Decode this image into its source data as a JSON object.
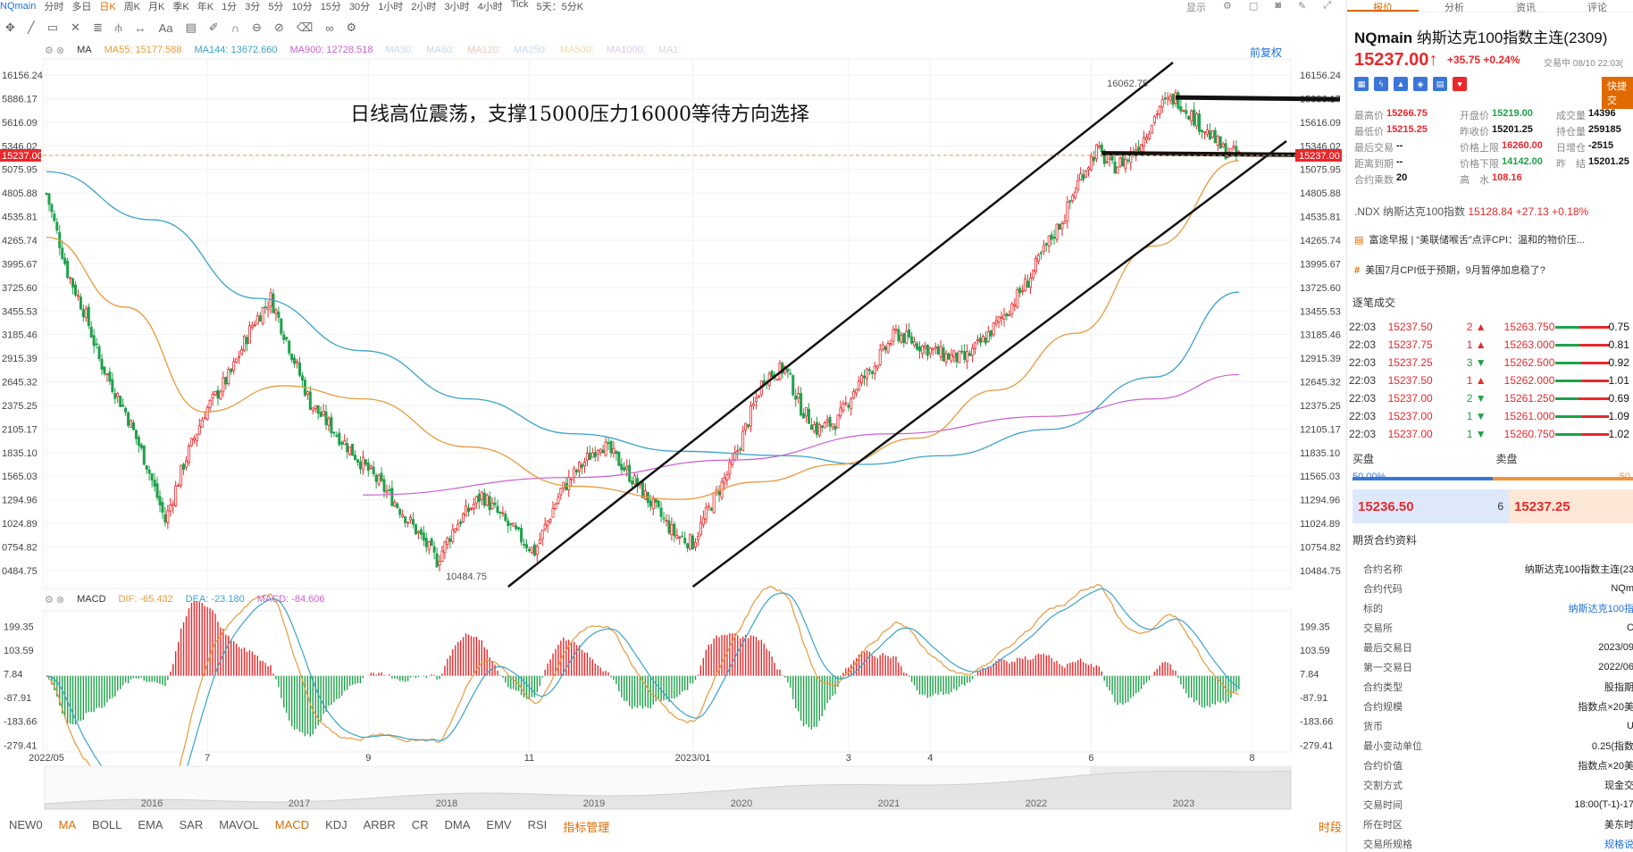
{
  "topbar": {
    "symbol": "NQmain",
    "periods": [
      "分时",
      "多日",
      "日K",
      "周K",
      "月K",
      "季K",
      "年K",
      "1分",
      "3分",
      "5分",
      "10分",
      "15分",
      "30分",
      "1小时",
      "2小时",
      "3小时",
      "4小时",
      "Tick",
      "5天：5分K"
    ],
    "active_period": "日K",
    "right_label": "显示"
  },
  "ma_legend": {
    "label": "MA",
    "items": [
      {
        "text": "MA55: 15177.588",
        "color": "#e89a3c"
      },
      {
        "text": "MA144: 13672.660",
        "color": "#3aa3c9"
      },
      {
        "text": "MA900: 12728.518",
        "color": "#c95fd0"
      },
      {
        "text": "MA30:",
        "color": "#c8d8e8"
      },
      {
        "text": "MA60:",
        "color": "#c8d8e8"
      },
      {
        "text": "MA120:",
        "color": "#f0c8c0"
      },
      {
        "text": "MA250:",
        "color": "#c8d8f0"
      },
      {
        "text": "MA500:",
        "color": "#f0d8b0"
      },
      {
        "text": "MA1000:",
        "color": "#d8c8f0"
      },
      {
        "text": "MA1:",
        "color": "#d8d8d8"
      }
    ]
  },
  "fq_label": "前复权",
  "annotation": "日线高位震荡，支撑15000压力16000等待方向选择",
  "macd_legend": {
    "label": "MACD",
    "items": [
      {
        "text": "DIF: -65.432",
        "color": "#e89a3c"
      },
      {
        "text": "DEA: -23.180",
        "color": "#3aa3c9"
      },
      {
        "text": "MACD: -84.606",
        "color": "#c95fd0"
      }
    ]
  },
  "chart_data": {
    "type": "candlestick",
    "price_ticks": [
      16156.24,
      15886.17,
      15616.09,
      15346.02,
      15075.95,
      14805.88,
      14535.81,
      14265.74,
      13995.67,
      13725.6,
      13455.53,
      13185.46,
      12915.39,
      12645.32,
      12375.25,
      12105.17,
      11835.1,
      11565.03,
      11294.96,
      11024.89,
      10754.82,
      10484.75
    ],
    "price_tick_labels": [
      "16156.24",
      "5886.17",
      "5616.09",
      "5346.02",
      "5075.95",
      "4805.88",
      "4535.81",
      "4265.74",
      "3995.67",
      "3725.60",
      "3455.53",
      "3185.46",
      "2915.39",
      "2645.32",
      "2375.25",
      "2105.17",
      "1835.10",
      "1565.03",
      "1294.96",
      "1024.89",
      "0754.82",
      "0484.75"
    ],
    "price_tick_labels_right": [
      "16156.24",
      "15886.17",
      "15616.09",
      "15346.02",
      "15075.95",
      "14805.88",
      "14535.81",
      "14265.74",
      "13995.67",
      "13725.60",
      "13455.53",
      "13185.46",
      "12915.39",
      "12645.32",
      "12375.25",
      "12105.17",
      "11835.10",
      "11565.03",
      "11294.96",
      "11024.89",
      "10754.82",
      "10484.75"
    ],
    "ylim": [
      10320,
      16300
    ],
    "current_price": 15237.0,
    "current_price_label": "15237.00",
    "high_label": "16062.75",
    "low_label": "10484.75",
    "x_labels": [
      "2022/05",
      "7",
      "9",
      "11",
      "2023/01",
      "3",
      "4",
      "6",
      "8"
    ],
    "x_label_positions_days": [
      0,
      61,
      122,
      183,
      245,
      304,
      335,
      396,
      457
    ],
    "x_days_total": 470,
    "waypoints": [
      [
        0,
        14800
      ],
      [
        8,
        13900
      ],
      [
        15,
        13400
      ],
      [
        20,
        12900
      ],
      [
        30,
        12300
      ],
      [
        38,
        11700
      ],
      [
        45,
        11050
      ],
      [
        52,
        11700
      ],
      [
        60,
        12300
      ],
      [
        70,
        12750
      ],
      [
        78,
        13300
      ],
      [
        85,
        13600
      ],
      [
        92,
        13050
      ],
      [
        100,
        12400
      ],
      [
        110,
        12050
      ],
      [
        120,
        11700
      ],
      [
        130,
        11350
      ],
      [
        140,
        10950
      ],
      [
        148,
        10600
      ],
      [
        155,
        11000
      ],
      [
        165,
        11350
      ],
      [
        175,
        11000
      ],
      [
        185,
        10700
      ],
      [
        195,
        11400
      ],
      [
        210,
        11950
      ],
      [
        218,
        11700
      ],
      [
        228,
        11300
      ],
      [
        238,
        10900
      ],
      [
        245,
        10800
      ],
      [
        252,
        11250
      ],
      [
        260,
        11700
      ],
      [
        266,
        12200
      ],
      [
        272,
        12700
      ],
      [
        280,
        12800
      ],
      [
        286,
        12350
      ],
      [
        292,
        12100
      ],
      [
        300,
        12200
      ],
      [
        306,
        12550
      ],
      [
        314,
        12850
      ],
      [
        322,
        13200
      ],
      [
        332,
        13050
      ],
      [
        340,
        12950
      ],
      [
        348,
        12900
      ],
      [
        356,
        13150
      ],
      [
        364,
        13450
      ],
      [
        372,
        13800
      ],
      [
        380,
        14250
      ],
      [
        386,
        14550
      ],
      [
        392,
        15000
      ],
      [
        398,
        15300
      ],
      [
        404,
        15100
      ],
      [
        410,
        15200
      ],
      [
        416,
        15450
      ],
      [
        422,
        15800
      ],
      [
        428,
        15900
      ],
      [
        434,
        15700
      ],
      [
        440,
        15500
      ],
      [
        446,
        15300
      ],
      [
        452,
        15237
      ]
    ],
    "ma55_anchor": [
      [
        0,
        14300
      ],
      [
        30,
        13500
      ],
      [
        60,
        12300
      ],
      [
        90,
        12600
      ],
      [
        120,
        12450
      ],
      [
        160,
        11900
      ],
      [
        200,
        11450
      ],
      [
        240,
        11300
      ],
      [
        270,
        11500
      ],
      [
        300,
        11700
      ],
      [
        330,
        12000
      ],
      [
        360,
        12550
      ],
      [
        390,
        13200
      ],
      [
        420,
        14200
      ],
      [
        452,
        15177
      ]
    ],
    "ma144_anchor": [
      [
        0,
        15050
      ],
      [
        40,
        14500
      ],
      [
        80,
        13600
      ],
      [
        120,
        13000
      ],
      [
        160,
        12450
      ],
      [
        200,
        12050
      ],
      [
        240,
        11850
      ],
      [
        280,
        11800
      ],
      [
        310,
        11700
      ],
      [
        340,
        11800
      ],
      [
        380,
        12100
      ],
      [
        420,
        12700
      ],
      [
        452,
        13672
      ]
    ],
    "ma900_anchor": [
      [
        120,
        11350
      ],
      [
        200,
        11550
      ],
      [
        260,
        11750
      ],
      [
        320,
        12050
      ],
      [
        380,
        12250
      ],
      [
        420,
        12450
      ],
      [
        452,
        12728
      ]
    ],
    "channel_lines": [
      {
        "x1_day": 175,
        "y1": 10300,
        "x2_day": 427,
        "y2": 16300
      },
      {
        "x1_day": 245,
        "y1": 10300,
        "x2_day": 470,
        "y2": 15400
      }
    ],
    "resistance_line": {
      "x1_day": 428,
      "x2_day": 470,
      "y": 15900
    },
    "support_line": {
      "x1_day": 400,
      "x2_day": 470,
      "y": 15220
    },
    "macd_ticks": [
      199.35,
      103.59,
      7.84,
      -87.91,
      -183.66,
      -279.41
    ],
    "macd_tick_labels": [
      "199.35",
      "103.59",
      "7.84",
      "-87.91",
      "-183.66",
      "-279.41"
    ],
    "macd_ylim": [
      -300,
      240
    ],
    "overview_years": [
      "2016",
      "2017",
      "2018",
      "2019",
      "2020",
      "2021",
      "2022",
      "2023"
    ]
  },
  "bottom_tabs": [
    "NEW0",
    "MA",
    "BOLL",
    "EMA",
    "SAR",
    "MAVOL",
    "MACD",
    "KDJ",
    "ARBR",
    "CR",
    "DMA",
    "EMV",
    "RSI"
  ],
  "bottom_active": [
    "MA",
    "MACD"
  ],
  "bottom_manage": "指标管理",
  "bottom_period": "时段",
  "panel": {
    "tabs": [
      "报价",
      "分析",
      "资讯",
      "评论"
    ],
    "active_tab": "报价",
    "symbol": "NQmain",
    "name": "纳斯达克100指数主连(2309)",
    "price": "15237.00",
    "change": "+35.75 +0.24%",
    "status": "交易中 08/10 22:03(",
    "quick_button": "快捷交",
    "stats": [
      [
        {
          "l": "最高价",
          "v": "15266.75",
          "c": "up"
        },
        {
          "l": "开盘价",
          "v": "15219.00",
          "c": "dn"
        },
        {
          "l": "成交量",
          "v": "14396",
          "c": "nv"
        }
      ],
      [
        {
          "l": "最低价",
          "v": "15215.25",
          "c": "up"
        },
        {
          "l": "昨收价",
          "v": "15201.25",
          "c": "nv"
        },
        {
          "l": "持仓量",
          "v": "259185",
          "c": "nv"
        }
      ],
      [
        {
          "l": "最后交易",
          "v": "--",
          "c": "nv"
        },
        {
          "l": "价格上限",
          "v": "16260.00",
          "c": "up"
        },
        {
          "l": "日增仓",
          "v": "-2515",
          "c": "nv"
        }
      ],
      [
        {
          "l": "距离到期",
          "v": "--",
          "c": "nv"
        },
        {
          "l": "价格下限",
          "v": "14142.00",
          "c": "dn"
        },
        {
          "l": "昨　结",
          "v": "15201.25",
          "c": "nv"
        }
      ],
      [
        {
          "l": "合约乘数",
          "v": "20",
          "c": "nv"
        },
        {
          "l": "高　水",
          "v": "108.16",
          "c": "up"
        },
        {
          "l": "",
          "v": "",
          "c": "nv"
        }
      ]
    ],
    "ndx_name": ".NDX 纳斯达克100指数",
    "ndx_value": "15128.84",
    "ndx_change": "+27.13",
    "ndx_pct": "+0.18%",
    "news1": "富途早报 | “美联储喉舌”点评CPI：温和的物价压...",
    "news2": "美国7月CPI低于预期，9月暂停加息稳了?",
    "trades_title": "逐笔成交",
    "trades": [
      {
        "t": "22:03",
        "p": "15237.50",
        "v": "2",
        "dir": "up",
        "lp": "15263.750",
        "amt": "0.75"
      },
      {
        "t": "22:03",
        "p": "15237.75",
        "v": "1",
        "dir": "up",
        "lp": "15263.000",
        "amt": "0.81"
      },
      {
        "t": "22:03",
        "p": "15237.25",
        "v": "3",
        "dir": "down",
        "lp": "15262.500",
        "amt": "0.92"
      },
      {
        "t": "22:03",
        "p": "15237.50",
        "v": "1",
        "dir": "up",
        "lp": "15262.000",
        "amt": "1.01"
      },
      {
        "t": "22:03",
        "p": "15237.00",
        "v": "2",
        "dir": "down",
        "lp": "15261.250",
        "amt": "0.69"
      },
      {
        "t": "22:03",
        "p": "15237.00",
        "v": "1",
        "dir": "down",
        "lp": "15261.000",
        "amt": "1.09"
      },
      {
        "t": "22:03",
        "p": "15237.00",
        "v": "1",
        "dir": "down",
        "lp": "15260.750",
        "amt": "1.02"
      }
    ],
    "buy_label": "买盘",
    "sell_label": "卖盘",
    "buy_pct": "50.00%",
    "sell_pct": "50.",
    "bid": "15236.50",
    "bid_qty": "6",
    "ask": "15237.25",
    "spec_title": "期货合约资料",
    "spec": [
      {
        "l": "合约名称",
        "v": "纳斯达克100指数主连(23"
      },
      {
        "l": "合约代码",
        "v": "NQm"
      },
      {
        "l": "标的",
        "v": "纳斯达克100指",
        "link": true
      },
      {
        "l": "交易所",
        "v": "C"
      },
      {
        "l": "最后交易日",
        "v": "2023/09"
      },
      {
        "l": "第一交易日",
        "v": "2022/06"
      },
      {
        "l": "合约类型",
        "v": "股指期"
      },
      {
        "l": "合约规模",
        "v": "指数点×20美"
      },
      {
        "l": "货币",
        "v": "U"
      },
      {
        "l": "最小变动单位",
        "v": "0.25(指数"
      },
      {
        "l": "合约价值",
        "v": "指数点×20美"
      },
      {
        "l": "交割方式",
        "v": "现金交"
      },
      {
        "l": "交易时间",
        "v": "18:00(T-1)-17"
      },
      {
        "l": "所在时区",
        "v": "美东时"
      },
      {
        "l": "交易所规格",
        "v": "规格说",
        "link": true
      }
    ]
  }
}
